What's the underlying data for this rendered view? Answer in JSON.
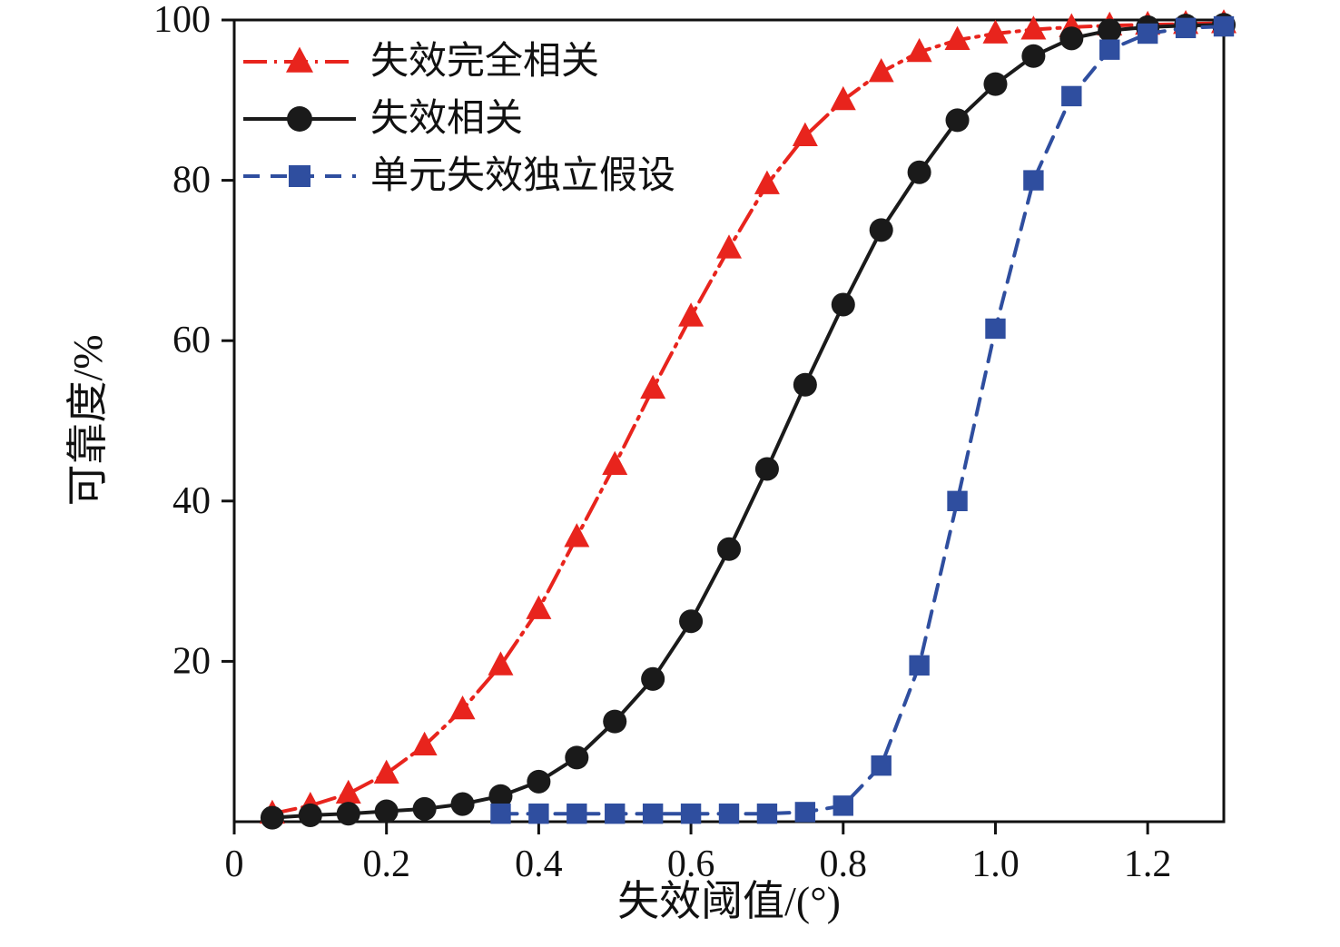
{
  "chart_data": {
    "type": "line",
    "title": "",
    "xlabel": "失效阈值/(°)",
    "ylabel": "可靠度/%",
    "xlim": [
      0,
      1.3
    ],
    "ylim": [
      0,
      100
    ],
    "x_ticks": [
      0,
      0.2,
      0.4,
      0.6,
      0.8,
      1.0,
      1.2
    ],
    "x_tick_labels": [
      "0",
      "0.2",
      "0.4",
      "0.6",
      "0.8",
      "1.0",
      "1.2"
    ],
    "y_ticks": [
      20,
      40,
      60,
      80,
      100
    ],
    "y_tick_labels": [
      "20",
      "40",
      "60",
      "80",
      "100"
    ],
    "grid": false,
    "legend_position": "top-left",
    "frame_color": "#111111",
    "series": [
      {
        "name": "失效完全相关",
        "color": "#e8241d",
        "marker": "triangle",
        "line_style": "dash-dot",
        "x": [
          0.05,
          0.1,
          0.15,
          0.2,
          0.25,
          0.3,
          0.35,
          0.4,
          0.45,
          0.5,
          0.55,
          0.6,
          0.65,
          0.7,
          0.75,
          0.8,
          0.85,
          0.9,
          0.95,
          1.0,
          1.05,
          1.1,
          1.15,
          1.2,
          1.25,
          1.3
        ],
        "y": [
          1,
          2,
          3.5,
          6,
          9.5,
          14,
          19.5,
          26.5,
          35.5,
          44.5,
          54,
          63,
          71.5,
          79.5,
          85.5,
          90,
          93.5,
          96,
          97.5,
          98.3,
          98.8,
          99.1,
          99.3,
          99.4,
          99.5,
          99.6
        ]
      },
      {
        "name": "失效相关",
        "color": "#1a1a1a",
        "marker": "circle",
        "line_style": "solid",
        "x": [
          0.05,
          0.1,
          0.15,
          0.2,
          0.25,
          0.3,
          0.35,
          0.4,
          0.45,
          0.5,
          0.55,
          0.6,
          0.65,
          0.7,
          0.75,
          0.8,
          0.85,
          0.9,
          0.95,
          1.0,
          1.05,
          1.1,
          1.15,
          1.2,
          1.25,
          1.3
        ],
        "y": [
          0.5,
          0.8,
          1,
          1.3,
          1.6,
          2.2,
          3.2,
          5,
          8,
          12.5,
          17.8,
          25,
          34,
          44,
          54.5,
          64.5,
          73.8,
          81,
          87.5,
          92,
          95.5,
          97.7,
          98.7,
          99.1,
          99.3,
          99.4
        ]
      },
      {
        "name": "单元失效独立假设",
        "color": "#2f4e9f",
        "marker": "square",
        "line_style": "dashed",
        "x": [
          0.35,
          0.4,
          0.45,
          0.5,
          0.55,
          0.6,
          0.65,
          0.7,
          0.75,
          0.8,
          0.85,
          0.9,
          0.95,
          1.0,
          1.05,
          1.1,
          1.15,
          1.2,
          1.25,
          1.3
        ],
        "y": [
          1,
          1,
          1,
          1,
          1,
          1,
          1,
          1,
          1.2,
          2,
          7,
          19.5,
          40,
          61.5,
          80,
          90.5,
          96.3,
          98.3,
          99,
          99.2
        ]
      }
    ]
  }
}
